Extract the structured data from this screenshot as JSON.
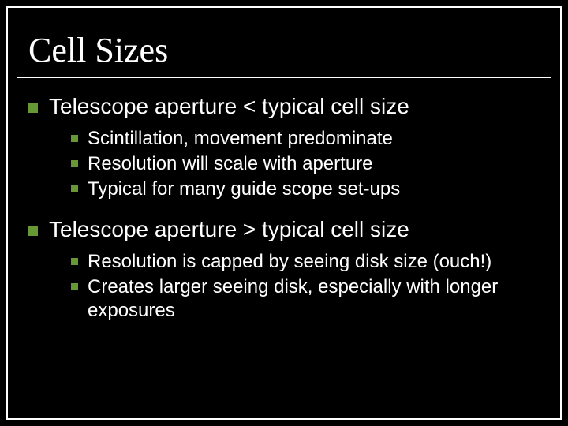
{
  "slide": {
    "title": "Cell Sizes",
    "background_color": "#000000",
    "text_color": "#ffffff",
    "bullet_color": "#669933",
    "border_color": "#ffffff",
    "title_font_family": "Times New Roman",
    "body_font_family": "Arial",
    "title_fontsize_pt": 36,
    "l1_fontsize_pt": 28,
    "l2_fontsize_pt": 24,
    "points": [
      {
        "text": "Telescope aperture < typical cell size",
        "sub": [
          "Scintillation, movement predominate",
          "Resolution will scale with aperture",
          "Typical for many guide scope set-ups"
        ]
      },
      {
        "text": "Telescope aperture > typical cell size",
        "sub": [
          "Resolution is capped by seeing disk size (ouch!)",
          "Creates larger seeing disk, especially with longer exposures"
        ]
      }
    ]
  }
}
